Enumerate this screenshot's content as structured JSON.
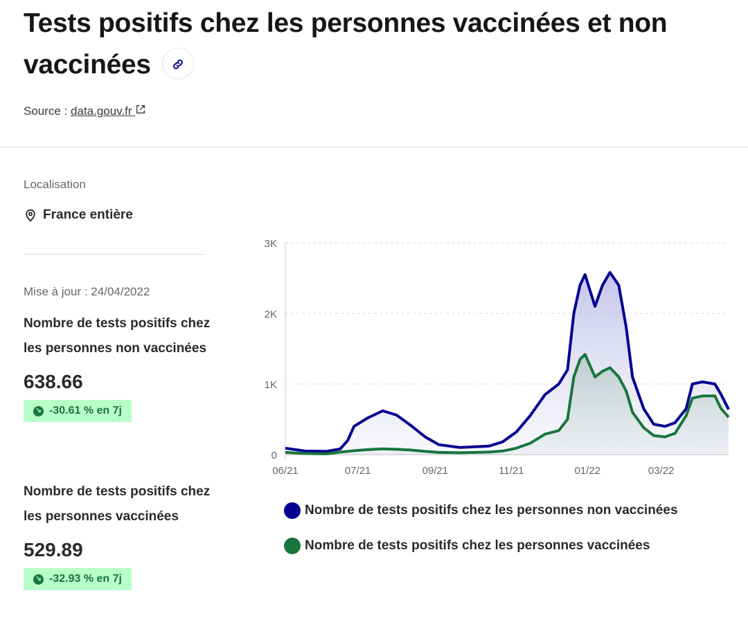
{
  "header": {
    "title": "Tests positifs chez les personnes vaccinées et non vaccinées",
    "link_icon": "link-icon",
    "source_label": "Source : ",
    "source_link": "data.gouv.fr",
    "external_icon": "external-link-icon"
  },
  "sidebar": {
    "location_label": "Localisation",
    "location_value": "France entière",
    "location_icon": "map-pin-icon",
    "updated": "Mise à jour : 24/04/2022",
    "indicators": [
      {
        "title": "Nombre de tests positifs chez les personnes non vaccinées",
        "value": "638.66",
        "trend": "-30.61 % en 7j",
        "trend_icon": "arrow-down-right-icon"
      },
      {
        "title": "Nombre de tests positifs chez les personnes vaccinées",
        "value": "529.89",
        "trend": "-32.93 % en 7j",
        "trend_icon": "arrow-down-right-icon"
      }
    ]
  },
  "colors": {
    "non_vaccinated": "#000091",
    "vaccinated": "#18753c",
    "badge_bg": "#b8fec9"
  },
  "chart_data": {
    "type": "area",
    "ylim": [
      0,
      3000
    ],
    "yticks": [
      {
        "v": 0,
        "label": "0"
      },
      {
        "v": 1000,
        "label": "1K"
      },
      {
        "v": 2000,
        "label": "2K"
      },
      {
        "v": 3000,
        "label": "3K"
      }
    ],
    "xticks": [
      {
        "d": "2021-05-04",
        "label": "06/21"
      },
      {
        "d": "2021-07-01",
        "label": "07/21"
      },
      {
        "d": "2021-09-01",
        "label": "09/21"
      },
      {
        "d": "2021-11-01",
        "label": "11/21"
      },
      {
        "d": "2022-01-01",
        "label": "01/22"
      },
      {
        "d": "2022-03-01",
        "label": "03/22"
      }
    ],
    "grid": true,
    "legend_position": "bottom",
    "x": [
      "2021-05-04",
      "2021-05-20",
      "2021-06-06",
      "2021-06-17",
      "2021-06-23",
      "2021-06-28",
      "2021-07-09",
      "2021-07-21",
      "2021-08-01",
      "2021-08-12",
      "2021-08-24",
      "2021-09-04",
      "2021-09-21",
      "2021-10-14",
      "2021-10-25",
      "2021-11-05",
      "2021-11-16",
      "2021-11-28",
      "2021-12-09",
      "2021-12-16",
      "2021-12-21",
      "2021-12-26",
      "2021-12-30",
      "2022-01-02",
      "2022-01-07",
      "2022-01-13",
      "2022-01-19",
      "2022-01-26",
      "2022-02-01",
      "2022-02-06",
      "2022-02-15",
      "2022-02-23",
      "2022-03-04",
      "2022-03-12",
      "2022-03-21",
      "2022-03-26",
      "2022-04-03",
      "2022-04-13",
      "2022-04-18",
      "2022-04-24"
    ],
    "series": [
      {
        "name": "Nombre de tests positifs chez les personnes non vaccinées",
        "color": "#000091",
        "values": [
          90,
          50,
          45,
          80,
          200,
          400,
          520,
          620,
          560,
          420,
          250,
          140,
          100,
          120,
          180,
          320,
          550,
          850,
          1000,
          1200,
          2000,
          2400,
          2550,
          2380,
          2100,
          2400,
          2580,
          2400,
          1800,
          1100,
          650,
          430,
          400,
          450,
          650,
          1000,
          1030,
          1000,
          850,
          640
        ]
      },
      {
        "name": "Nombre de tests positifs chez les personnes vaccinées",
        "color": "#18753c",
        "values": [
          30,
          15,
          10,
          35,
          45,
          55,
          70,
          80,
          75,
          65,
          45,
          30,
          25,
          35,
          50,
          90,
          160,
          290,
          340,
          500,
          1100,
          1350,
          1420,
          1300,
          1100,
          1180,
          1230,
          1100,
          900,
          600,
          380,
          270,
          250,
          300,
          550,
          800,
          830,
          830,
          650,
          530
        ]
      }
    ]
  }
}
